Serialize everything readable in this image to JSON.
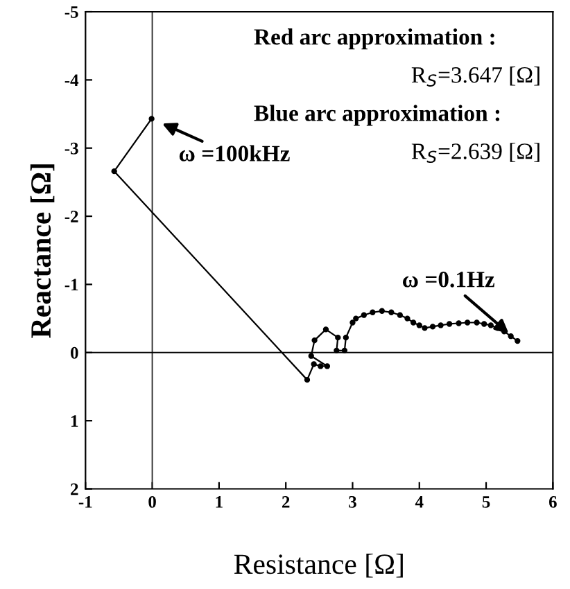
{
  "chart_data": {
    "type": "line",
    "xlabel": "Resistance [Ω]",
    "ylabel": "Reactance [Ω]",
    "xlim": [
      -1,
      6
    ],
    "ylim": [
      2,
      -5
    ],
    "xticks": [
      -1,
      0,
      1,
      2,
      3,
      4,
      5,
      6
    ],
    "yticks": [
      -5,
      -4,
      -3,
      -2,
      -1,
      0,
      1,
      2
    ],
    "grid": false,
    "marker": "circle",
    "line_style": "solid",
    "ref_lines": [
      {
        "axis": "x",
        "value": 0,
        "color": "#333333"
      },
      {
        "axis": "y",
        "value": 0,
        "color": "#000000"
      }
    ],
    "series": [
      {
        "color": "#000000",
        "x": [
          -0.01,
          -0.57,
          2.32,
          2.42,
          2.52,
          2.62,
          2.38,
          2.43,
          2.6,
          2.78,
          2.76,
          2.88,
          2.9,
          3.0,
          3.05,
          3.17,
          3.3,
          3.44,
          3.58,
          3.71,
          3.82,
          3.91,
          4.0,
          4.08,
          4.2,
          4.32,
          4.45,
          4.59,
          4.72,
          4.86,
          4.97,
          5.07,
          5.17,
          5.27,
          5.37,
          5.47
        ],
        "values": [
          -3.43,
          -2.66,
          0.4,
          0.17,
          0.2,
          0.2,
          0.05,
          -0.18,
          -0.34,
          -0.22,
          -0.03,
          -0.03,
          -0.22,
          -0.44,
          -0.5,
          -0.55,
          -0.59,
          -0.61,
          -0.59,
          -0.55,
          -0.5,
          -0.44,
          -0.4,
          -0.36,
          -0.38,
          -0.4,
          -0.42,
          -0.43,
          -0.44,
          -0.44,
          -0.42,
          -0.4,
          -0.36,
          -0.31,
          -0.24,
          -0.17
        ]
      }
    ],
    "annotations": [
      {
        "text": "ω =100kHz",
        "x": -0.01,
        "y": -3.43
      },
      {
        "text": "ω =0.1Hz",
        "x": 5.47,
        "y": -0.17
      },
      "Red arc approximation :",
      "R$_{S}$=3.647 [Ω]",
      "Blue arc approximation :",
      "R$_{S}$=2.639 [Ω]"
    ]
  }
}
